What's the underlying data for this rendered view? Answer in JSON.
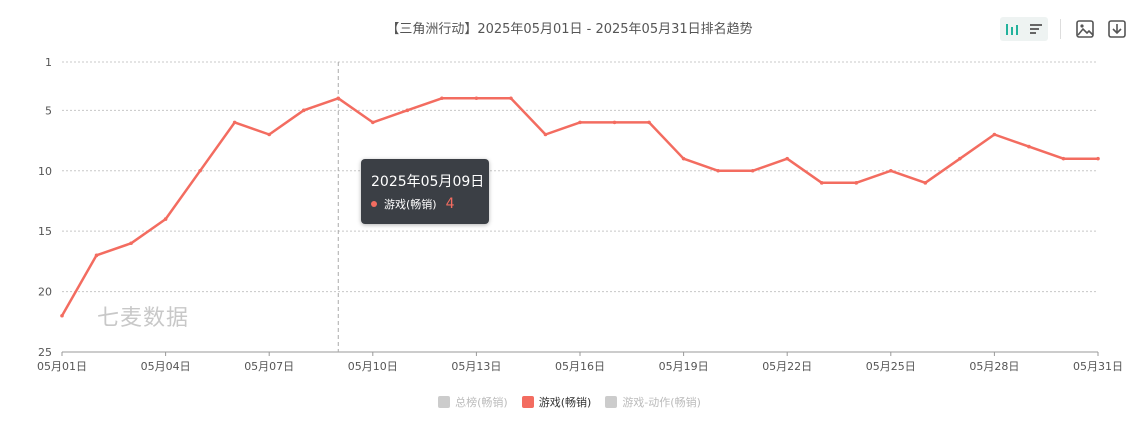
{
  "chart_title": "【三角洲行动】2025年05月01日 - 2025年05月31日排名趋势",
  "watermark": "七麦数据",
  "toolbar": {
    "icons": [
      "bar-chart-icon",
      "list-icon",
      "save-image-icon",
      "download-icon"
    ]
  },
  "tooltip": {
    "date": "2025年05月09日",
    "series": "游戏(畅销)",
    "value": "4"
  },
  "legend": [
    {
      "label": "总榜(畅销)",
      "color": "#cccccc",
      "active": false
    },
    {
      "label": "游戏(畅销)",
      "color": "#f36c60",
      "active": true
    },
    {
      "label": "游戏-动作(畅销)",
      "color": "#cccccc",
      "active": false
    }
  ],
  "chart_data": {
    "type": "line",
    "title": "【三角洲行动】2025年05月01日 - 2025年05月31日排名趋势",
    "y_inverted": true,
    "ylim": [
      1,
      25
    ],
    "yticks": [
      "1",
      "5",
      "10",
      "15",
      "20",
      "25"
    ],
    "xticks": [
      "05月01日",
      "05月04日",
      "05月07日",
      "05月10日",
      "05月13日",
      "05月16日",
      "05月19日",
      "05月22日",
      "05月25日",
      "05月28日",
      "05月31日"
    ],
    "x": [
      "05月01日",
      "05月02日",
      "05月03日",
      "05月04日",
      "05月05日",
      "05月06日",
      "05月07日",
      "05月08日",
      "05月09日",
      "05月10日",
      "05月11日",
      "05月12日",
      "05月13日",
      "05月14日",
      "05月15日",
      "05月16日",
      "05月17日",
      "05月18日",
      "05月19日",
      "05月20日",
      "05月21日",
      "05月22日",
      "05月23日",
      "05月24日",
      "05月25日",
      "05月26日",
      "05月27日",
      "05月28日",
      "05月29日",
      "05月30日",
      "05月31日"
    ],
    "series": [
      {
        "name": "游戏(畅销)",
        "color": "#f36c60",
        "values": [
          22,
          17,
          16,
          14,
          10,
          6,
          7,
          5,
          4,
          6,
          5,
          4,
          4,
          4,
          7,
          6,
          6,
          6,
          9,
          10,
          10,
          9,
          11,
          11,
          10,
          11,
          9,
          7,
          8,
          9,
          9
        ]
      }
    ],
    "grid": true,
    "legend_position": "bottom-center",
    "highlight_index": 8
  }
}
